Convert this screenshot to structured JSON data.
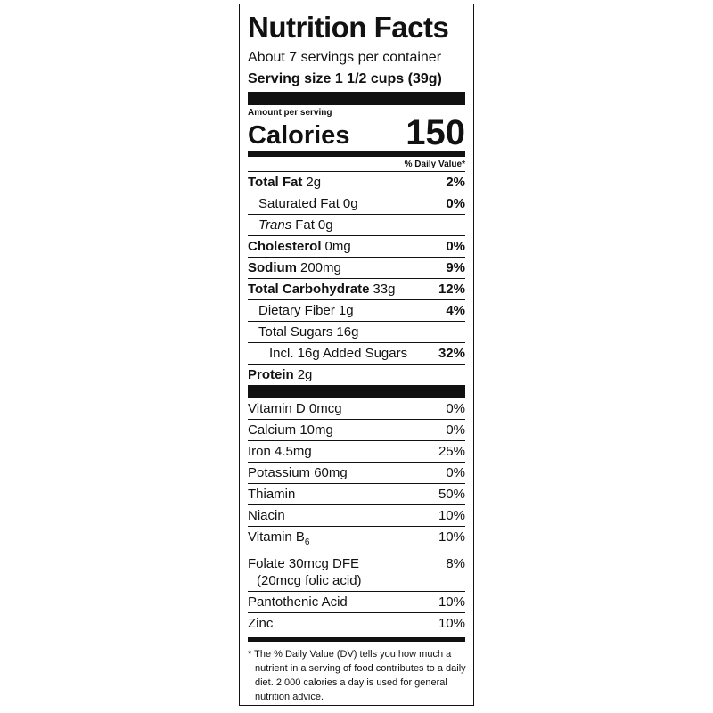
{
  "title": "Nutrition Facts",
  "servings": "About 7 servings per container",
  "serving_size": "Serving size 1 1/2 cups (39g)",
  "amount_per_serving": "Amount per serving",
  "calories": {
    "label": "Calories",
    "value": 150
  },
  "dv_header": "% Daily Value*",
  "nutrients": [
    {
      "name": "Total Fat",
      "amount": "2g",
      "dv": "2%",
      "bold": true,
      "indent": 0
    },
    {
      "name": "Saturated Fat",
      "amount": "0g",
      "dv": "0%",
      "bold": false,
      "indent": 1
    },
    {
      "prefix": "Trans",
      "name": "Fat",
      "amount": "0g",
      "bold": false,
      "indent": 1
    },
    {
      "name": "Cholesterol",
      "amount": "0mg",
      "dv": "0%",
      "bold": true,
      "indent": 0
    },
    {
      "name": "Sodium",
      "amount": "200mg",
      "dv": "9%",
      "bold": true,
      "indent": 0
    },
    {
      "name": "Total Carbohydrate",
      "amount": "33g",
      "dv": "12%",
      "bold": true,
      "indent": 0
    },
    {
      "name": "Dietary Fiber",
      "amount": "1g",
      "dv": "4%",
      "bold": false,
      "indent": 1
    },
    {
      "name": "Total Sugars",
      "amount": "16g",
      "bold": false,
      "indent": 1
    },
    {
      "name": "Incl. 16g Added Sugars",
      "dv": "32%",
      "bold": false,
      "indent": 2
    },
    {
      "name": "Protein",
      "amount": "2g",
      "bold": true,
      "indent": 0
    }
  ],
  "vitamins": [
    {
      "lines": [
        "Vitamin D 0mcg"
      ],
      "dv": "0%"
    },
    {
      "lines": [
        "Calcium 10mg"
      ],
      "dv": "0%"
    },
    {
      "lines": [
        "Iron 4.5mg"
      ],
      "dv": "25%"
    },
    {
      "lines": [
        "Potassium 60mg"
      ],
      "dv": "0%"
    },
    {
      "lines": [
        "Thiamin"
      ],
      "dv": "50%"
    },
    {
      "lines": [
        "Niacin"
      ],
      "dv": "10%"
    },
    {
      "lines": [
        "Vitamin B"
      ],
      "sub": "6",
      "dv": "10%"
    },
    {
      "lines": [
        "Folate 30mcg DFE",
        "(20mcg folic acid)"
      ],
      "dv": "8%"
    },
    {
      "lines": [
        "Pantothenic Acid"
      ],
      "dv": "10%"
    },
    {
      "lines": [
        "Zinc"
      ],
      "dv": "10%"
    }
  ],
  "footnote": [
    "* The % Daily Value (DV) tells you how much a",
    "nutrient in a serving of food contributes to a daily",
    "diet. 2,000 calories a day is used for general",
    "nutrition advice."
  ]
}
